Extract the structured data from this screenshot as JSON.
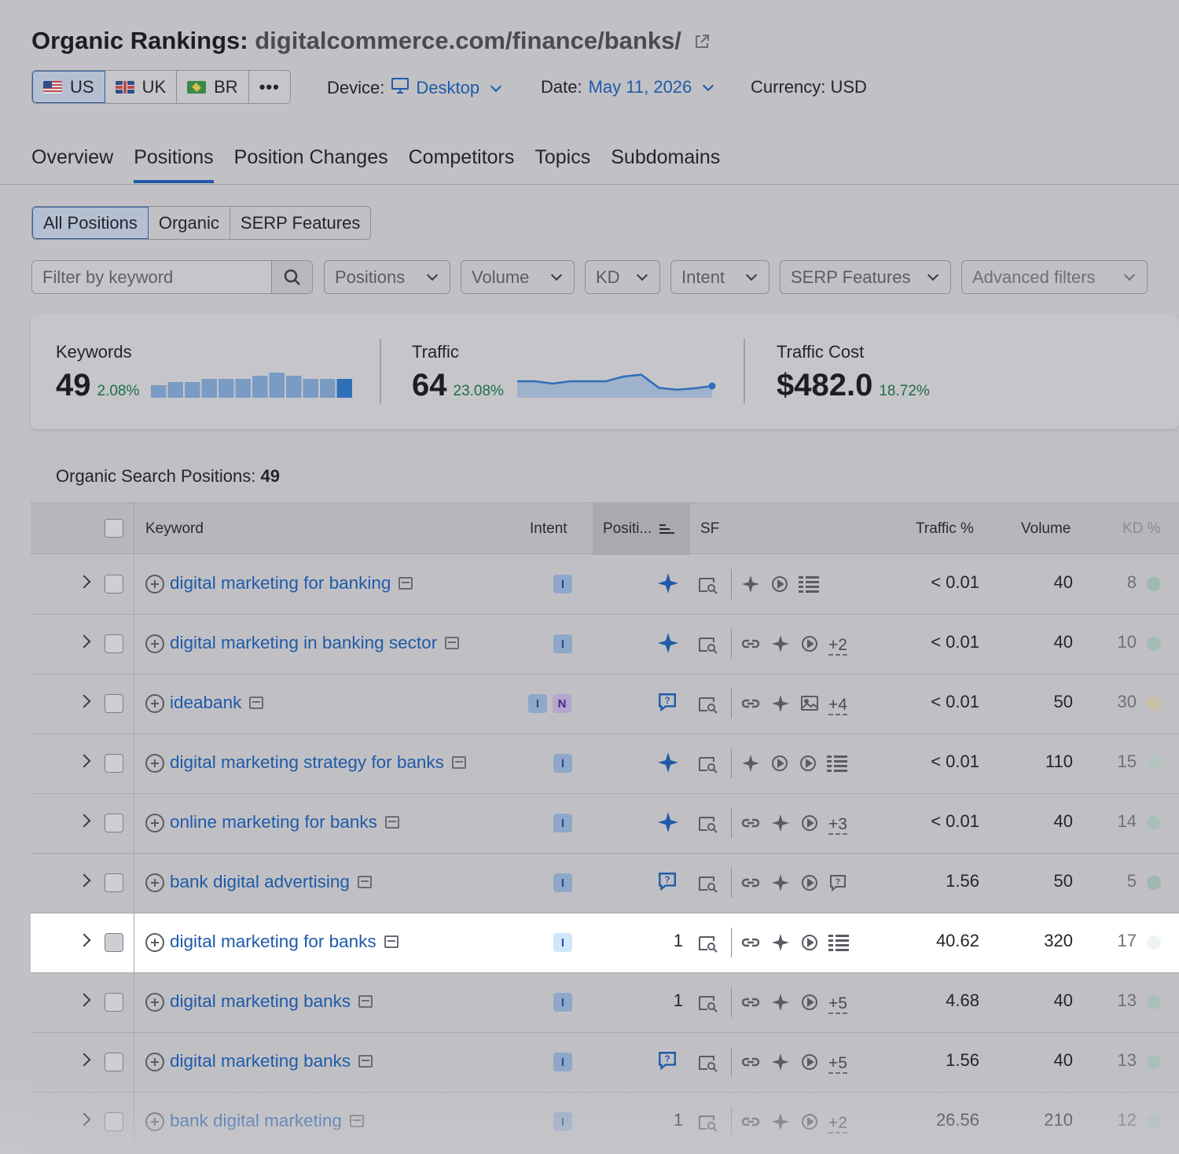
{
  "header": {
    "title": "Organic Rankings:",
    "domain": "digitalcommerce.com/finance/banks/",
    "countries": [
      {
        "code": "US",
        "active": true
      },
      {
        "code": "UK",
        "active": false
      },
      {
        "code": "BR",
        "active": false
      }
    ],
    "more_label": "•••",
    "device_label": "Device:",
    "device_value": "Desktop",
    "date_label": "Date:",
    "date_value": "May 11, 2026",
    "currency_label": "Currency: USD"
  },
  "tabs": [
    "Overview",
    "Positions",
    "Position Changes",
    "Competitors",
    "Topics",
    "Subdomains"
  ],
  "active_tab": "Positions",
  "segments": [
    "All Positions",
    "Organic",
    "SERP Features"
  ],
  "filters": {
    "search_placeholder": "Filter by keyword",
    "dropdowns": [
      "Positions",
      "Volume",
      "KD",
      "Intent",
      "SERP Features",
      "Advanced filters"
    ]
  },
  "summary": {
    "keywords": {
      "label": "Keywords",
      "value": "49",
      "delta": "2.08%",
      "bars": [
        4,
        5,
        5,
        6,
        6,
        6,
        7,
        8,
        7,
        6,
        6,
        6
      ]
    },
    "traffic": {
      "label": "Traffic",
      "value": "64",
      "delta": "23.08%",
      "series": [
        3,
        3,
        2.5,
        3,
        3,
        3,
        4,
        4.4,
        1.6,
        1.2,
        1.5,
        2
      ]
    },
    "traffic_cost": {
      "label": "Traffic Cost",
      "value": "$482.0",
      "delta": "18.72%"
    }
  },
  "table": {
    "title_prefix": "Organic Search Positions:",
    "title_count": "49",
    "columns": {
      "keyword": "Keyword",
      "intent": "Intent",
      "position": "Positi...",
      "sf": "SF",
      "traffic": "Traffic %",
      "volume": "Volume",
      "kd": "KD %"
    },
    "rows": [
      {
        "keyword": "digital marketing for banking",
        "intents": [
          "I"
        ],
        "position": "",
        "pos_icon": "ai-overview",
        "sf": [
          "ai",
          "video",
          "list"
        ],
        "sf_more": "",
        "traffic": "< 0.01",
        "volume": "40",
        "kd": "8",
        "kd_color": "#9fb8b0",
        "highlight": false
      },
      {
        "keyword": "digital marketing in banking sector",
        "intents": [
          "I"
        ],
        "position": "",
        "pos_icon": "ai-overview",
        "sf": [
          "link",
          "ai",
          "video"
        ],
        "sf_more": "+2",
        "traffic": "< 0.01",
        "volume": "40",
        "kd": "10",
        "kd_color": "#a3bcb4",
        "highlight": false
      },
      {
        "keyword": "ideabank",
        "intents": [
          "I",
          "N"
        ],
        "position": "",
        "pos_icon": "faq",
        "sf": [
          "link",
          "ai",
          "image"
        ],
        "sf_more": "+4",
        "traffic": "< 0.01",
        "volume": "50",
        "kd": "30",
        "kd_color": "#c9c2a8",
        "highlight": false
      },
      {
        "keyword": "digital marketing strategy for banks",
        "intents": [
          "I"
        ],
        "position": "",
        "pos_icon": "ai-overview",
        "sf": [
          "ai",
          "video",
          "video",
          "list"
        ],
        "sf_more": "",
        "traffic": "< 0.01",
        "volume": "110",
        "kd": "15",
        "kd_color": "#b3c3be",
        "highlight": false
      },
      {
        "keyword": "online marketing for banks",
        "intents": [
          "I"
        ],
        "position": "",
        "pos_icon": "ai-overview",
        "sf": [
          "link",
          "ai",
          "video"
        ],
        "sf_more": "+3",
        "traffic": "< 0.01",
        "volume": "40",
        "kd": "14",
        "kd_color": "#a9bfb8",
        "highlight": false
      },
      {
        "keyword": "bank digital advertising",
        "intents": [
          "I"
        ],
        "position": "",
        "pos_icon": "faq",
        "sf": [
          "link",
          "ai",
          "video",
          "faq"
        ],
        "sf_more": "",
        "traffic": "1.56",
        "volume": "50",
        "kd": "5",
        "kd_color": "#9fb8b0",
        "highlight": false
      },
      {
        "keyword": "digital marketing for banks",
        "intents": [
          "I"
        ],
        "position": "1",
        "pos_icon": "",
        "sf": [
          "link",
          "ai",
          "video",
          "list"
        ],
        "sf_more": "",
        "traffic": "40.62",
        "volume": "320",
        "kd": "17",
        "kd_color": "#eef4f2",
        "highlight": true
      },
      {
        "keyword": "digital marketing banks",
        "intents": [
          "I"
        ],
        "position": "1",
        "pos_icon": "",
        "sf": [
          "link",
          "ai",
          "video"
        ],
        "sf_more": "+5",
        "traffic": "4.68",
        "volume": "40",
        "kd": "13",
        "kd_color": "#a9bfb8",
        "highlight": false
      },
      {
        "keyword": "digital marketing banks",
        "intents": [
          "I"
        ],
        "position": "",
        "pos_icon": "faq",
        "sf": [
          "link",
          "ai",
          "video"
        ],
        "sf_more": "+5",
        "traffic": "1.56",
        "volume": "40",
        "kd": "13",
        "kd_color": "#a9bfb8",
        "highlight": false
      },
      {
        "keyword": "bank digital marketing",
        "intents": [
          "I"
        ],
        "position": "1",
        "pos_icon": "",
        "sf": [
          "link",
          "ai",
          "video"
        ],
        "sf_more": "+2",
        "traffic": "26.56",
        "volume": "210",
        "kd": "12",
        "kd_color": "#a9bfb8",
        "highlight": false
      }
    ]
  },
  "colors": {
    "accent": "#1f5aa8",
    "positive": "#1f6d4a",
    "highlight_row": "#ffffff",
    "overlay": "#c1c1c5"
  }
}
